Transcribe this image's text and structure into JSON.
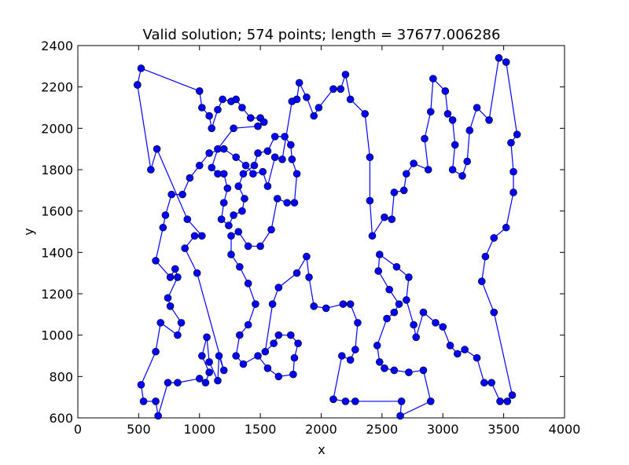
{
  "chart_data": {
    "type": "line",
    "title": "Valid solution; 574 points; length = 37677.006286",
    "x_label": "x",
    "y_label": "y",
    "xlim": [
      0,
      4000
    ],
    "ylim": [
      600,
      2400
    ],
    "xticks": [
      0,
      500,
      1000,
      1500,
      2000,
      2500,
      3000,
      3500,
      4000
    ],
    "yticks": [
      600,
      800,
      1000,
      1200,
      1400,
      1600,
      1800,
      2000,
      2200,
      2400
    ],
    "grid": false,
    "markers": true,
    "x": [
      490,
      520,
      1000,
      1020,
      1080,
      1100,
      1150,
      1190,
      1260,
      1300,
      1350,
      1420,
      1500,
      1530,
      1480,
      1280,
      1150,
      1100,
      1150,
      1200,
      1230,
      1200,
      1180,
      1240,
      1280,
      1350,
      1370,
      1320,
      1360,
      1450,
      1480,
      1560,
      1620,
      1700,
      1750,
      1760,
      1800,
      1780,
      1720,
      1640,
      1590,
      1500,
      1400,
      1320,
      1260,
      1260,
      1330,
      1400,
      1460,
      1400,
      1330,
      1300,
      1360,
      1480,
      1560,
      1650,
      1770,
      1780,
      1810,
      1750,
      1650,
      1610,
      1540,
      1600,
      1650,
      1800,
      1880,
      1900,
      1940,
      2040,
      2180,
      2240,
      2300,
      2280,
      2240,
      2170,
      2100,
      2200,
      2280,
      2660,
      2650,
      2900,
      2840,
      2720,
      2600,
      2520,
      2480,
      2460,
      2540,
      2600,
      2640,
      2560,
      2470,
      2480,
      2620,
      2720,
      2700,
      2760,
      2780,
      2840,
      2940,
      3000,
      3060,
      3120,
      3180,
      3280,
      3340,
      3400,
      3470,
      3530,
      3570,
      3420,
      3320,
      3350,
      3420,
      3520,
      3580,
      3580,
      3560,
      3610,
      3520,
      3460,
      3380,
      3280,
      3220,
      3200,
      3160,
      3080,
      3100,
      3080,
      3040,
      3020,
      2920,
      2900,
      2850,
      2880,
      2760,
      2700,
      2680,
      2600,
      2580,
      2520,
      2420,
      2400,
      2400,
      2360,
      2240,
      2200,
      2160,
      2100,
      1980,
      1940,
      1880,
      1820,
      1800,
      1760,
      1680,
      1620,
      1560,
      1520,
      1440,
      1380,
      1300,
      1200,
      1080,
      1000,
      920,
      860,
      770,
      720,
      700,
      640,
      760,
      800,
      820,
      740,
      760,
      850,
      820,
      680,
      640,
      520,
      540,
      640,
      660,
      740,
      820,
      1000,
      1050,
      1080,
      1020,
      1060,
      1080,
      1150,
      1160,
      1200,
      980,
      880,
      960,
      1020,
      900,
      650,
      600,
      490
    ],
    "series": [
      {
        "color": "#0000ff",
        "values": [
          2210,
          2290,
          2180,
          2100,
          2060,
          2000,
          2090,
          2140,
          2130,
          2140,
          2100,
          2050,
          2050,
          2030,
          2010,
          2000,
          1900,
          1810,
          1780,
          1780,
          1710,
          1640,
          1560,
          1530,
          1580,
          1600,
          1660,
          1720,
          1780,
          1820,
          1880,
          1890,
          1960,
          1960,
          1920,
          1850,
          1780,
          1640,
          1640,
          1660,
          1510,
          1430,
          1430,
          1500,
          1480,
          1390,
          1330,
          1250,
          1150,
          1050,
          1000,
          900,
          860,
          900,
          840,
          800,
          810,
          890,
          960,
          1000,
          1000,
          960,
          920,
          1150,
          1230,
          1300,
          1380,
          1280,
          1140,
          1130,
          1150,
          1150,
          1060,
          930,
          880,
          900,
          690,
          680,
          680,
          680,
          610,
          680,
          830,
          820,
          830,
          840,
          870,
          950,
          1080,
          1110,
          1150,
          1220,
          1310,
          1390,
          1330,
          1280,
          1170,
          1050,
          990,
          1110,
          1060,
          1040,
          950,
          910,
          930,
          890,
          770,
          770,
          680,
          680,
          710,
          1110,
          1260,
          1380,
          1470,
          1520,
          1690,
          1790,
          1930,
          1970,
          2320,
          2340,
          2040,
          2100,
          1990,
          1840,
          1770,
          1800,
          1920,
          2040,
          2070,
          2180,
          2240,
          2080,
          1950,
          1800,
          1830,
          1780,
          1700,
          1690,
          1560,
          1570,
          1480,
          1650,
          1860,
          2070,
          2140,
          2260,
          2190,
          2190,
          2100,
          2060,
          2150,
          2220,
          2140,
          2130,
          1850,
          1860,
          1720,
          1790,
          1780,
          1820,
          1860,
          1900,
          1880,
          1820,
          1760,
          1680,
          1680,
          1580,
          1520,
          1360,
          1280,
          1320,
          1280,
          1180,
          1140,
          1060,
          1000,
          1060,
          920,
          760,
          680,
          680,
          610,
          770,
          770,
          790,
          770,
          820,
          900,
          990,
          870,
          780,
          900,
          830,
          1300,
          1420,
          1480,
          1480,
          1560,
          1900,
          1800,
          2210
        ]
      }
    ]
  }
}
